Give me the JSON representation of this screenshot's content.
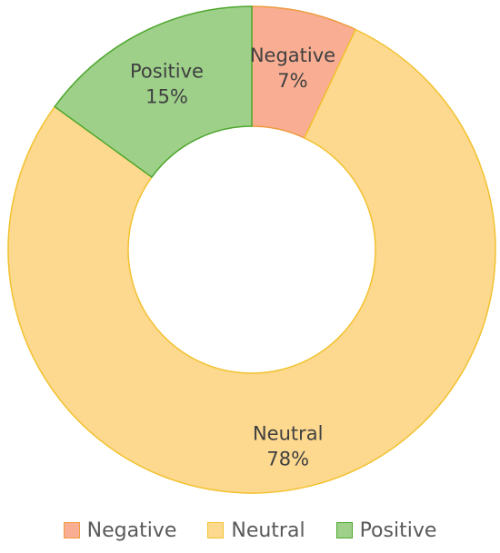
{
  "chart_data": {
    "type": "pie",
    "variant": "donut",
    "title": "",
    "slices": [
      {
        "label": "Negative",
        "value": 7,
        "value_label": "7%",
        "fill": "#F9AE93",
        "stroke": "#EE9A3D"
      },
      {
        "label": "Neutral",
        "value": 78,
        "value_label": "78%",
        "fill": "#FDD98F",
        "stroke": "#F2C12E"
      },
      {
        "label": "Positive",
        "value": 15,
        "value_label": "15%",
        "fill": "#9ED08A",
        "stroke": "#4EA72E"
      }
    ],
    "legend": {
      "placement": "bottom",
      "entries": [
        "Negative",
        "Neutral",
        "Positive"
      ]
    }
  }
}
